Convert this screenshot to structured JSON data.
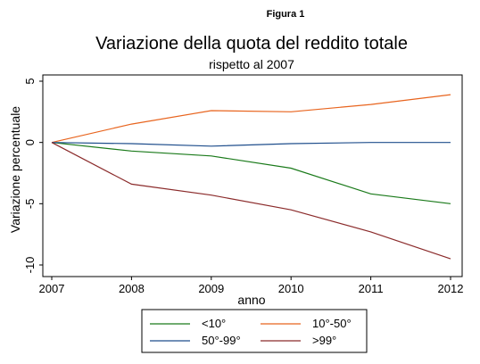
{
  "figure_label": "Figura 1",
  "chart_data": {
    "type": "line",
    "title": "Variazione della quota del reddito totale",
    "subtitle": "rispetto al 2007",
    "xlabel": "anno",
    "ylabel": "Variazione percentuale",
    "x": [
      2007,
      2008,
      2009,
      2010,
      2011,
      2012
    ],
    "xlim": [
      2007,
      2012
    ],
    "ylim": [
      -10,
      5
    ],
    "yticks": [
      5,
      0,
      -5,
      -10
    ],
    "yticks_labels": [
      "5",
      "0",
      "-5",
      "-10"
    ],
    "xticks_labels": [
      "2007",
      "2008",
      "2009",
      "2010",
      "2011",
      "2012"
    ],
    "grid": false,
    "legend_position": "bottom",
    "series": [
      {
        "name": "<10°",
        "color": "#1a7a1a",
        "values": [
          0,
          -0.7,
          -1.1,
          -2.1,
          -4.2,
          -5.0
        ]
      },
      {
        "name": "10°-50°",
        "color": "#e8641e",
        "values": [
          0,
          1.5,
          2.6,
          2.5,
          3.1,
          3.9
        ]
      },
      {
        "name": "50°-99°",
        "color": "#1f4e8c",
        "values": [
          0,
          -0.1,
          -0.3,
          -0.1,
          0.0,
          0.0
        ]
      },
      {
        "name": ">99°",
        "color": "#8b2b2b",
        "values": [
          0,
          -3.4,
          -4.3,
          -5.5,
          -7.3,
          -9.5
        ]
      }
    ]
  }
}
